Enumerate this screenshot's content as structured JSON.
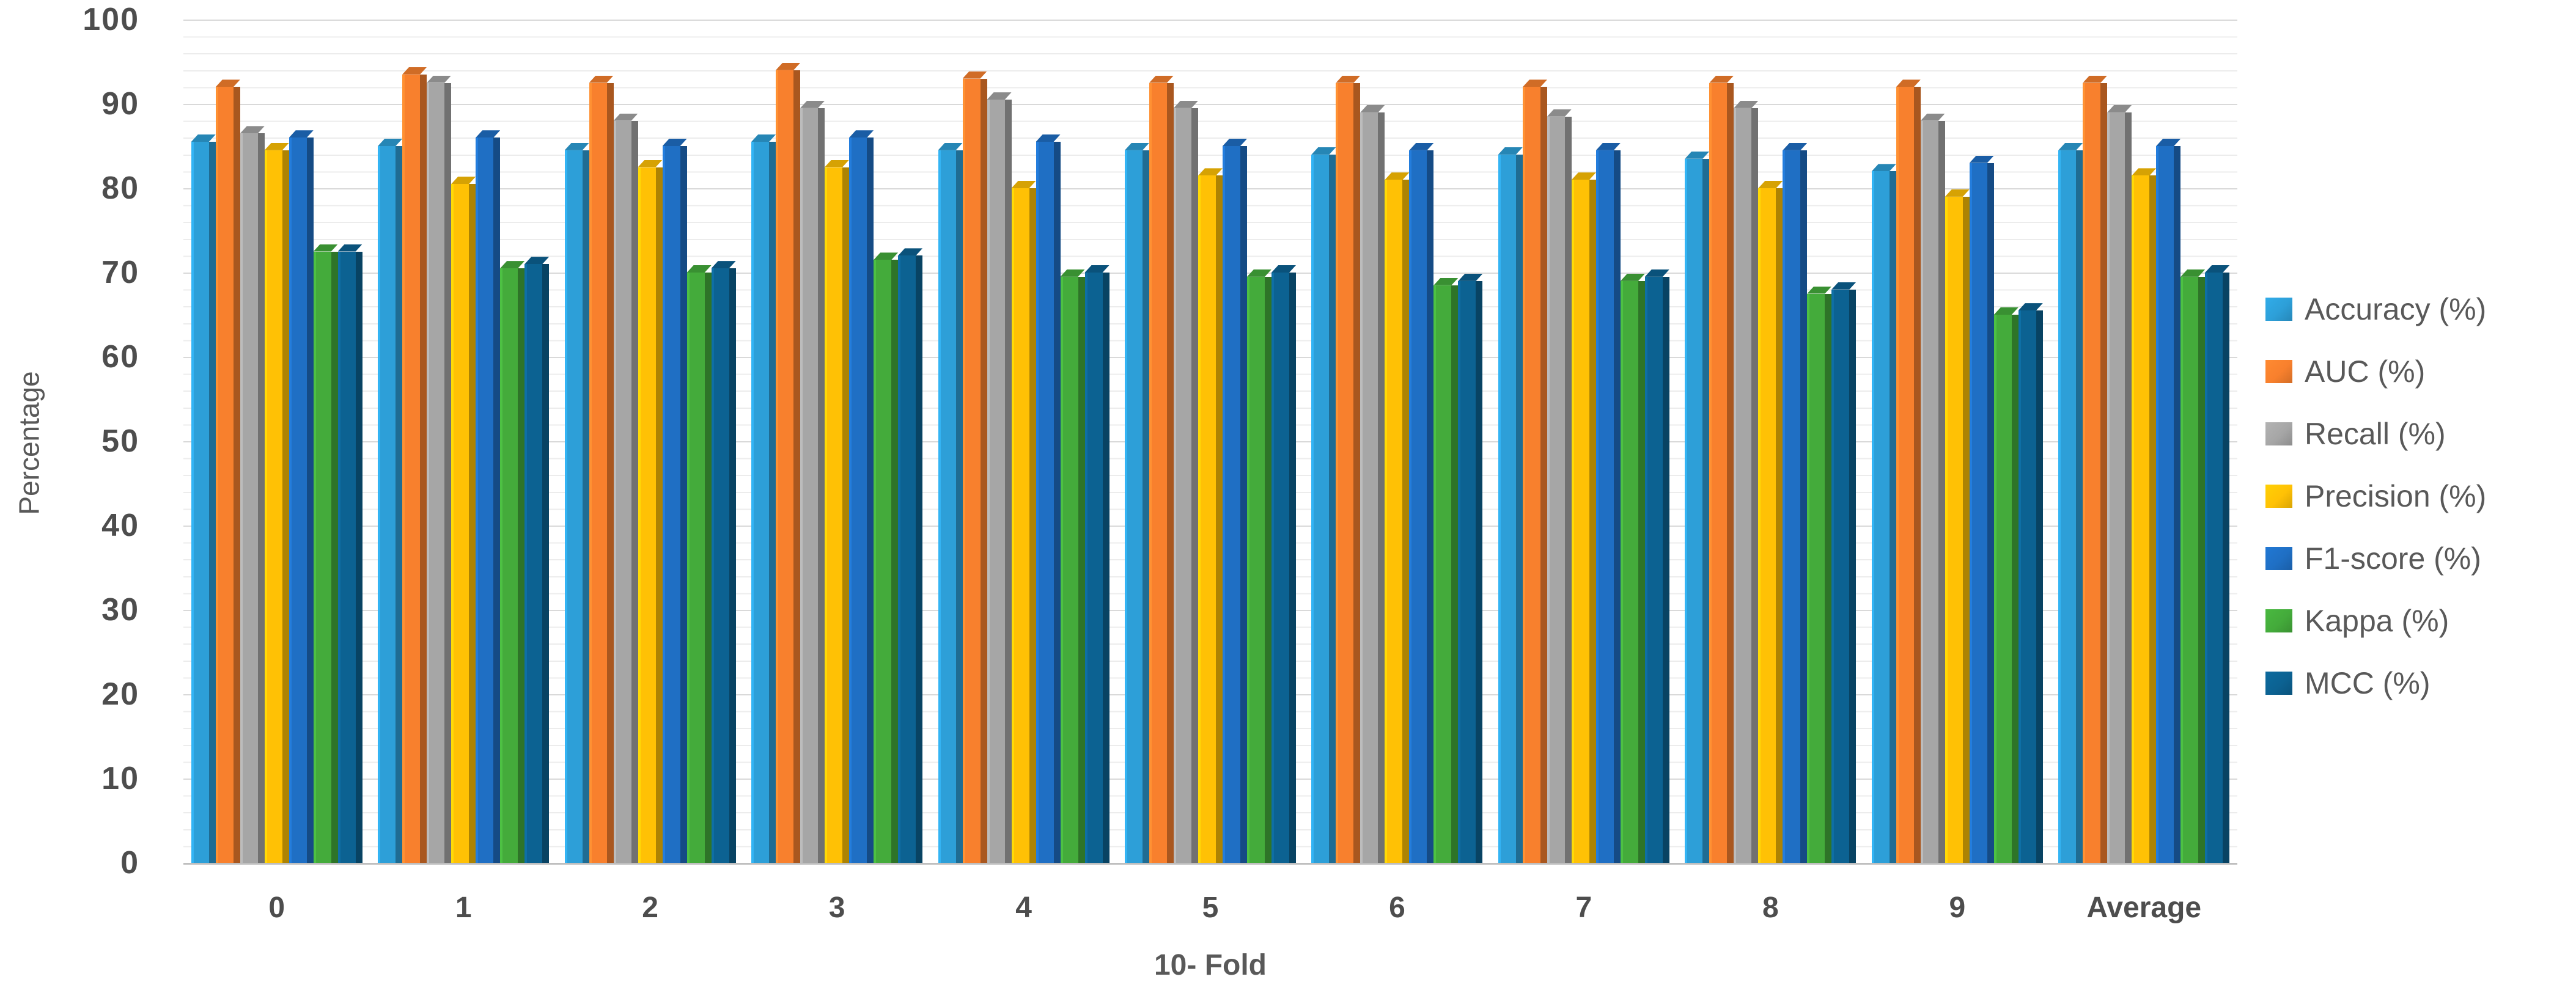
{
  "colors": {
    "background": "#ffffff",
    "text_primary": "#4d4d4d",
    "text_secondary": "#595959",
    "grid_minor": "#ececec",
    "grid_major": "#d9d9d9",
    "axis_line": "#bfbfbf"
  },
  "axes": {
    "x_title": "10- Fold",
    "y_title": "Percentage"
  },
  "chart_data": {
    "type": "bar",
    "style": "3d-clustered-column",
    "title": "",
    "xlabel": "10- Fold",
    "ylabel": "Percentage",
    "ylim": [
      0,
      100
    ],
    "y_tick_step": 10,
    "minor_grid_step": 2,
    "grid": true,
    "legend_position": "right",
    "y_ticks": [
      0,
      10,
      20,
      30,
      40,
      50,
      60,
      70,
      80,
      90,
      100
    ],
    "categories": [
      "0",
      "1",
      "2",
      "3",
      "4",
      "5",
      "6",
      "7",
      "8",
      "9",
      "Average"
    ],
    "series": [
      {
        "name": "Accuracy (%)",
        "color": "#2D9FD8",
        "values": [
          85.5,
          85,
          84.5,
          85.5,
          84.5,
          84.5,
          84,
          84,
          83.5,
          82,
          84.5
        ]
      },
      {
        "name": "AUC (%)",
        "color": "#F8802D",
        "values": [
          92,
          93.5,
          92.5,
          94,
          93,
          92.5,
          92.5,
          92,
          92.5,
          92,
          92.5
        ]
      },
      {
        "name": "Recall (%)",
        "color": "#A6A6A6",
        "values": [
          86.5,
          92.5,
          88,
          89.5,
          90.5,
          89.5,
          89,
          88.5,
          89.5,
          88,
          89
        ]
      },
      {
        "name": "Precision (%)",
        "color": "#FFC105",
        "values": [
          84.5,
          80.5,
          82.5,
          82.5,
          80,
          81.5,
          81,
          81,
          80,
          79,
          81.5
        ]
      },
      {
        "name": "F1-score (%)",
        "color": "#1F6FC4",
        "values": [
          86,
          86,
          85,
          86,
          85.5,
          85,
          84.5,
          84.5,
          84.5,
          83,
          85
        ]
      },
      {
        "name": "Kappa (%)",
        "color": "#44AB3B",
        "values": [
          72.5,
          70.5,
          70,
          71.5,
          69.5,
          69.5,
          68.5,
          69,
          67.5,
          65,
          69.5
        ]
      },
      {
        "name": "MCC (%)",
        "color": "#0C6292",
        "values": [
          72.5,
          71,
          70.5,
          72,
          70,
          70,
          69,
          69.5,
          68,
          65.5,
          70
        ]
      }
    ]
  }
}
